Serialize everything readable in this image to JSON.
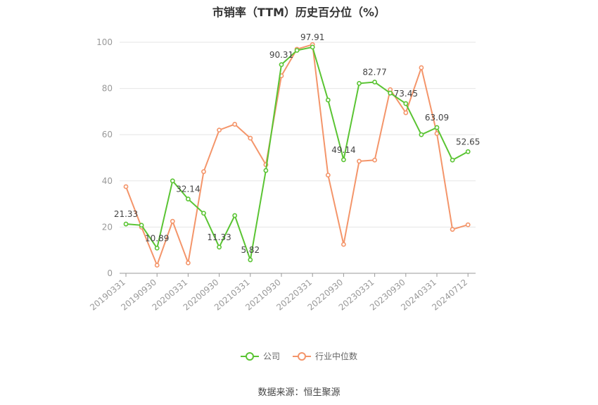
{
  "chart_data": {
    "type": "line",
    "title": "市销率（TTM）历史百分位（%）",
    "ylim": [
      0,
      100
    ],
    "yticks": [
      0,
      20,
      40,
      60,
      80,
      100
    ],
    "x": [
      "20190331",
      "20190630",
      "20190930",
      "20191231",
      "20200331",
      "20200630",
      "20200930",
      "20201231",
      "20210331",
      "20210630",
      "20210930",
      "20211231",
      "20220331",
      "20220630",
      "20220930",
      "20221231",
      "20230331",
      "20230630",
      "20230930",
      "20231231",
      "20240331",
      "20240630",
      "20240712"
    ],
    "xtick_labels": [
      "20190331",
      "20190930",
      "20200331",
      "20200930",
      "20210331",
      "20210930",
      "20220331",
      "20220930",
      "20230331",
      "20230930",
      "20240331",
      "20240712"
    ],
    "xtick_indices": [
      0,
      2,
      4,
      6,
      8,
      10,
      12,
      14,
      16,
      18,
      20,
      22
    ],
    "series": [
      {
        "name": "公司",
        "color": "#5ac433",
        "values": [
          21.33,
          20.8,
          10.89,
          40.0,
          32.14,
          26.0,
          11.33,
          25.0,
          5.82,
          44.5,
          90.31,
          96.5,
          97.91,
          75.0,
          49.14,
          82.2,
          82.77,
          78.0,
          73.45,
          60.0,
          63.09,
          49.0,
          52.65
        ],
        "labels": {
          "0": "21.33",
          "2": "10.89",
          "4": "32.14",
          "6": "11.33",
          "8": "5.82",
          "10": "90.31",
          "12": "97.91",
          "14": "49.14",
          "16": "82.77",
          "18": "73.45",
          "20": "63.09",
          "22": "52.65"
        }
      },
      {
        "name": "行业中位数",
        "color": "#f4956a",
        "values": [
          37.5,
          20.0,
          3.5,
          22.5,
          4.5,
          44.0,
          62.0,
          64.5,
          58.5,
          47.0,
          85.5,
          97.0,
          99.0,
          42.5,
          12.5,
          48.5,
          49.0,
          79.5,
          69.5,
          89.0,
          60.5,
          19.0,
          21.0
        ],
        "labels": {}
      }
    ]
  },
  "legend": {
    "company": "公司",
    "industry": "行业中位数"
  },
  "source": "数据来源：恒生聚源"
}
